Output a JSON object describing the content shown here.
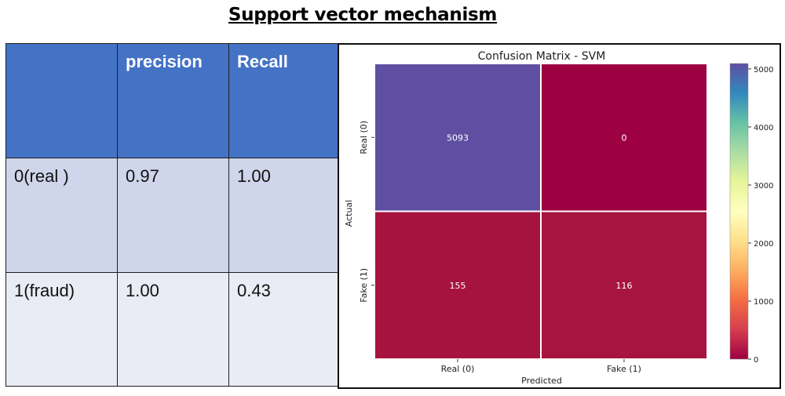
{
  "page": {
    "title": "Support vector mechanism"
  },
  "table": {
    "headers": [
      "",
      "precision",
      "Recall"
    ],
    "rows": [
      [
        "0(real )",
        "0.97",
        "1.00"
      ],
      [
        "1(fraud)",
        "1.00",
        "0.43"
      ]
    ]
  },
  "chart_data": {
    "type": "heatmap",
    "title": "Confusion Matrix - SVM",
    "xlabel": "Predicted",
    "ylabel": "Actual",
    "x_categories": [
      "Real (0)",
      "Fake (1)"
    ],
    "y_categories": [
      "Real (0)",
      "Fake (1)"
    ],
    "values": [
      [
        5093,
        0
      ],
      [
        155,
        116
      ]
    ],
    "colormap": "Spectral",
    "colorbar": {
      "min": 0,
      "max": 5093,
      "ticks": [
        0,
        1000,
        2000,
        3000,
        4000,
        5000
      ]
    },
    "cell_colors": [
      [
        "#5e4fa2",
        "#9e0142"
      ],
      [
        "#a6133f",
        "#a7143f"
      ]
    ],
    "grid": false,
    "legend": "colorbar-right"
  }
}
